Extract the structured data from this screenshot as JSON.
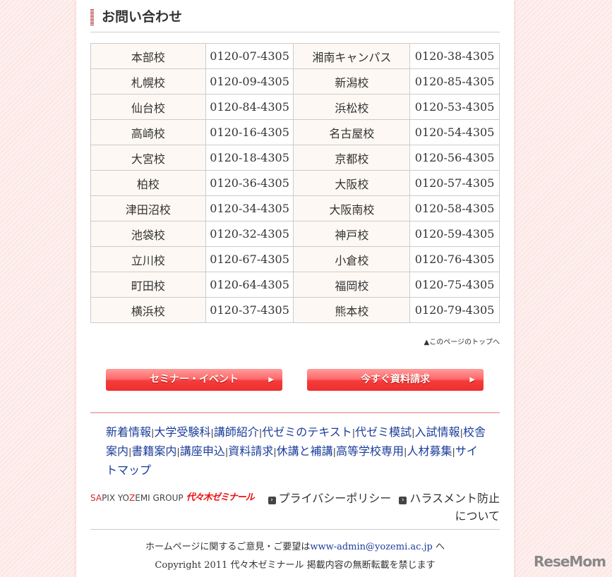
{
  "section_title": "お問い合わせ",
  "schools": [
    [
      "本部校",
      "0120-07-4305",
      "湘南キャンパス",
      "0120-38-4305"
    ],
    [
      "札幌校",
      "0120-09-4305",
      "新潟校",
      "0120-85-4305"
    ],
    [
      "仙台校",
      "0120-84-4305",
      "浜松校",
      "0120-53-4305"
    ],
    [
      "高崎校",
      "0120-16-4305",
      "名古屋校",
      "0120-54-4305"
    ],
    [
      "大宮校",
      "0120-18-4305",
      "京都校",
      "0120-56-4305"
    ],
    [
      "柏校",
      "0120-36-4305",
      "大阪校",
      "0120-57-4305"
    ],
    [
      "津田沼校",
      "0120-34-4305",
      "大阪南校",
      "0120-58-4305"
    ],
    [
      "池袋校",
      "0120-32-4305",
      "神戸校",
      "0120-59-4305"
    ],
    [
      "立川校",
      "0120-67-4305",
      "小倉校",
      "0120-76-4305"
    ],
    [
      "町田校",
      "0120-64-4305",
      "福岡校",
      "0120-75-4305"
    ],
    [
      "横浜校",
      "0120-37-4305",
      "熊本校",
      "0120-79-4305"
    ]
  ],
  "to_top": "▲このページのトップへ",
  "buttons": {
    "seminar": "セミナー・イベント",
    "request": "今すぐ資料請求",
    "arrow": "▶"
  },
  "footer_links": [
    "新着情報",
    "大学受験科",
    "講師紹介",
    "代ゼミのテキスト",
    "代ゼミ模試",
    "入試情報",
    "校舎案内",
    "書籍案内",
    "講座申込",
    "資料請求",
    "休講と補講",
    "高等学校専用",
    "人材募集",
    "サイトマップ"
  ],
  "brand": {
    "group_a": "SA",
    "group_b": "PIX YO",
    "group_c": "Z",
    "group_d": "EMI GROUP",
    "logo": "代々木ゼミナール"
  },
  "privacy": "プライバシーポリシー",
  "harassment": "ハラスメント防止について",
  "feedback": {
    "prefix": "ホームページに関するご意見・ご要望は",
    "email": "www-admin@yozemi.ac.jp",
    "suffix": " へ"
  },
  "copyright": "Copyright 2011 代々木ゼミナール 掲載内容の無断転載を禁じます",
  "watermark": "ReseMom"
}
